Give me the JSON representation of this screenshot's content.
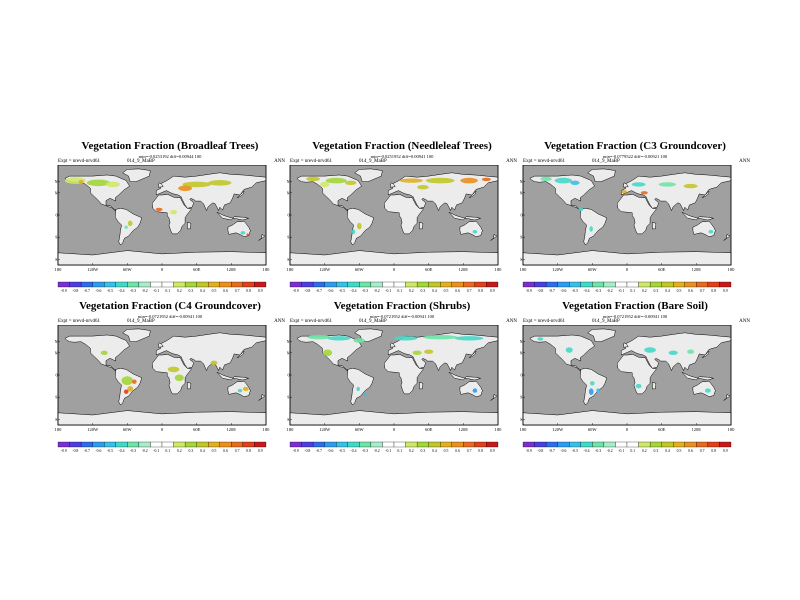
{
  "common": {
    "expt_label": "Expt = nrevd-nrvd61",
    "case_label": "014_9_MaBP",
    "season": "ANN",
    "lat_labels": [
      "60N",
      "40N",
      "0",
      "40S",
      "80S"
    ],
    "lon_labels": [
      "180",
      "120W",
      "60W",
      "0",
      "60E",
      "120E",
      "180"
    ],
    "colorbar_ticks": [
      "-0.9",
      "-0.8",
      "-0.7",
      "-0.6",
      "-0.5",
      "-0.4",
      "-0.3",
      "-0.2",
      "-0.1",
      "0.1",
      "0.2",
      "0.3",
      "0.4",
      "0.5",
      "0.6",
      "0.7",
      "0.8",
      "0.9"
    ],
    "colorbar_colors": [
      "#7a2fd0",
      "#4b3fe0",
      "#2f6ce8",
      "#2f9bf0",
      "#38c0e8",
      "#45d8c8",
      "#6fe4a8",
      "#a8ecc8",
      "#ffffff",
      "#ffffff",
      "#cfe86a",
      "#a4d63a",
      "#c2c62a",
      "#e0b022",
      "#e89020",
      "#e86a1e",
      "#e0401c",
      "#c81818"
    ],
    "colors": {
      "ocean": "#a0a0a0",
      "land": "#ececec",
      "coast": "#000000"
    }
  },
  "panels": [
    {
      "title": "Vegetation Fraction (Broadleaf Trees)",
      "stats": "min=-0.0253192 diff=0.00944 100"
    },
    {
      "title": "Vegetation Fraction (Needleleaf Trees)",
      "stats": "min=-0.0251952 diff=0.00941 100"
    },
    {
      "title": "Vegetation Fraction (C3 Groundcover)",
      "stats": "min=-0.0779522 diff=-0.00921 100"
    },
    {
      "title": "Vegetation Fraction (C4 Groundcover)",
      "stats": "min=-0.0721952 diff=-0.00941 100"
    },
    {
      "title": "Vegetation Fraction (Shrubs)",
      "stats": "min=-0.0721952 diff=-0.00941 100"
    },
    {
      "title": "Vegetation Fraction (Bare Soil)",
      "stats": "min=-0.0721952 diff=-0.00941 100"
    }
  ],
  "chart_data": {
    "type": "map",
    "projection": "cylindrical equidistant",
    "longitude_range": [
      -180,
      180
    ],
    "latitude_range": [
      -90,
      90
    ],
    "variable": "vegetation fraction difference",
    "colorbar_range": [
      -0.9,
      0.9
    ]
  }
}
